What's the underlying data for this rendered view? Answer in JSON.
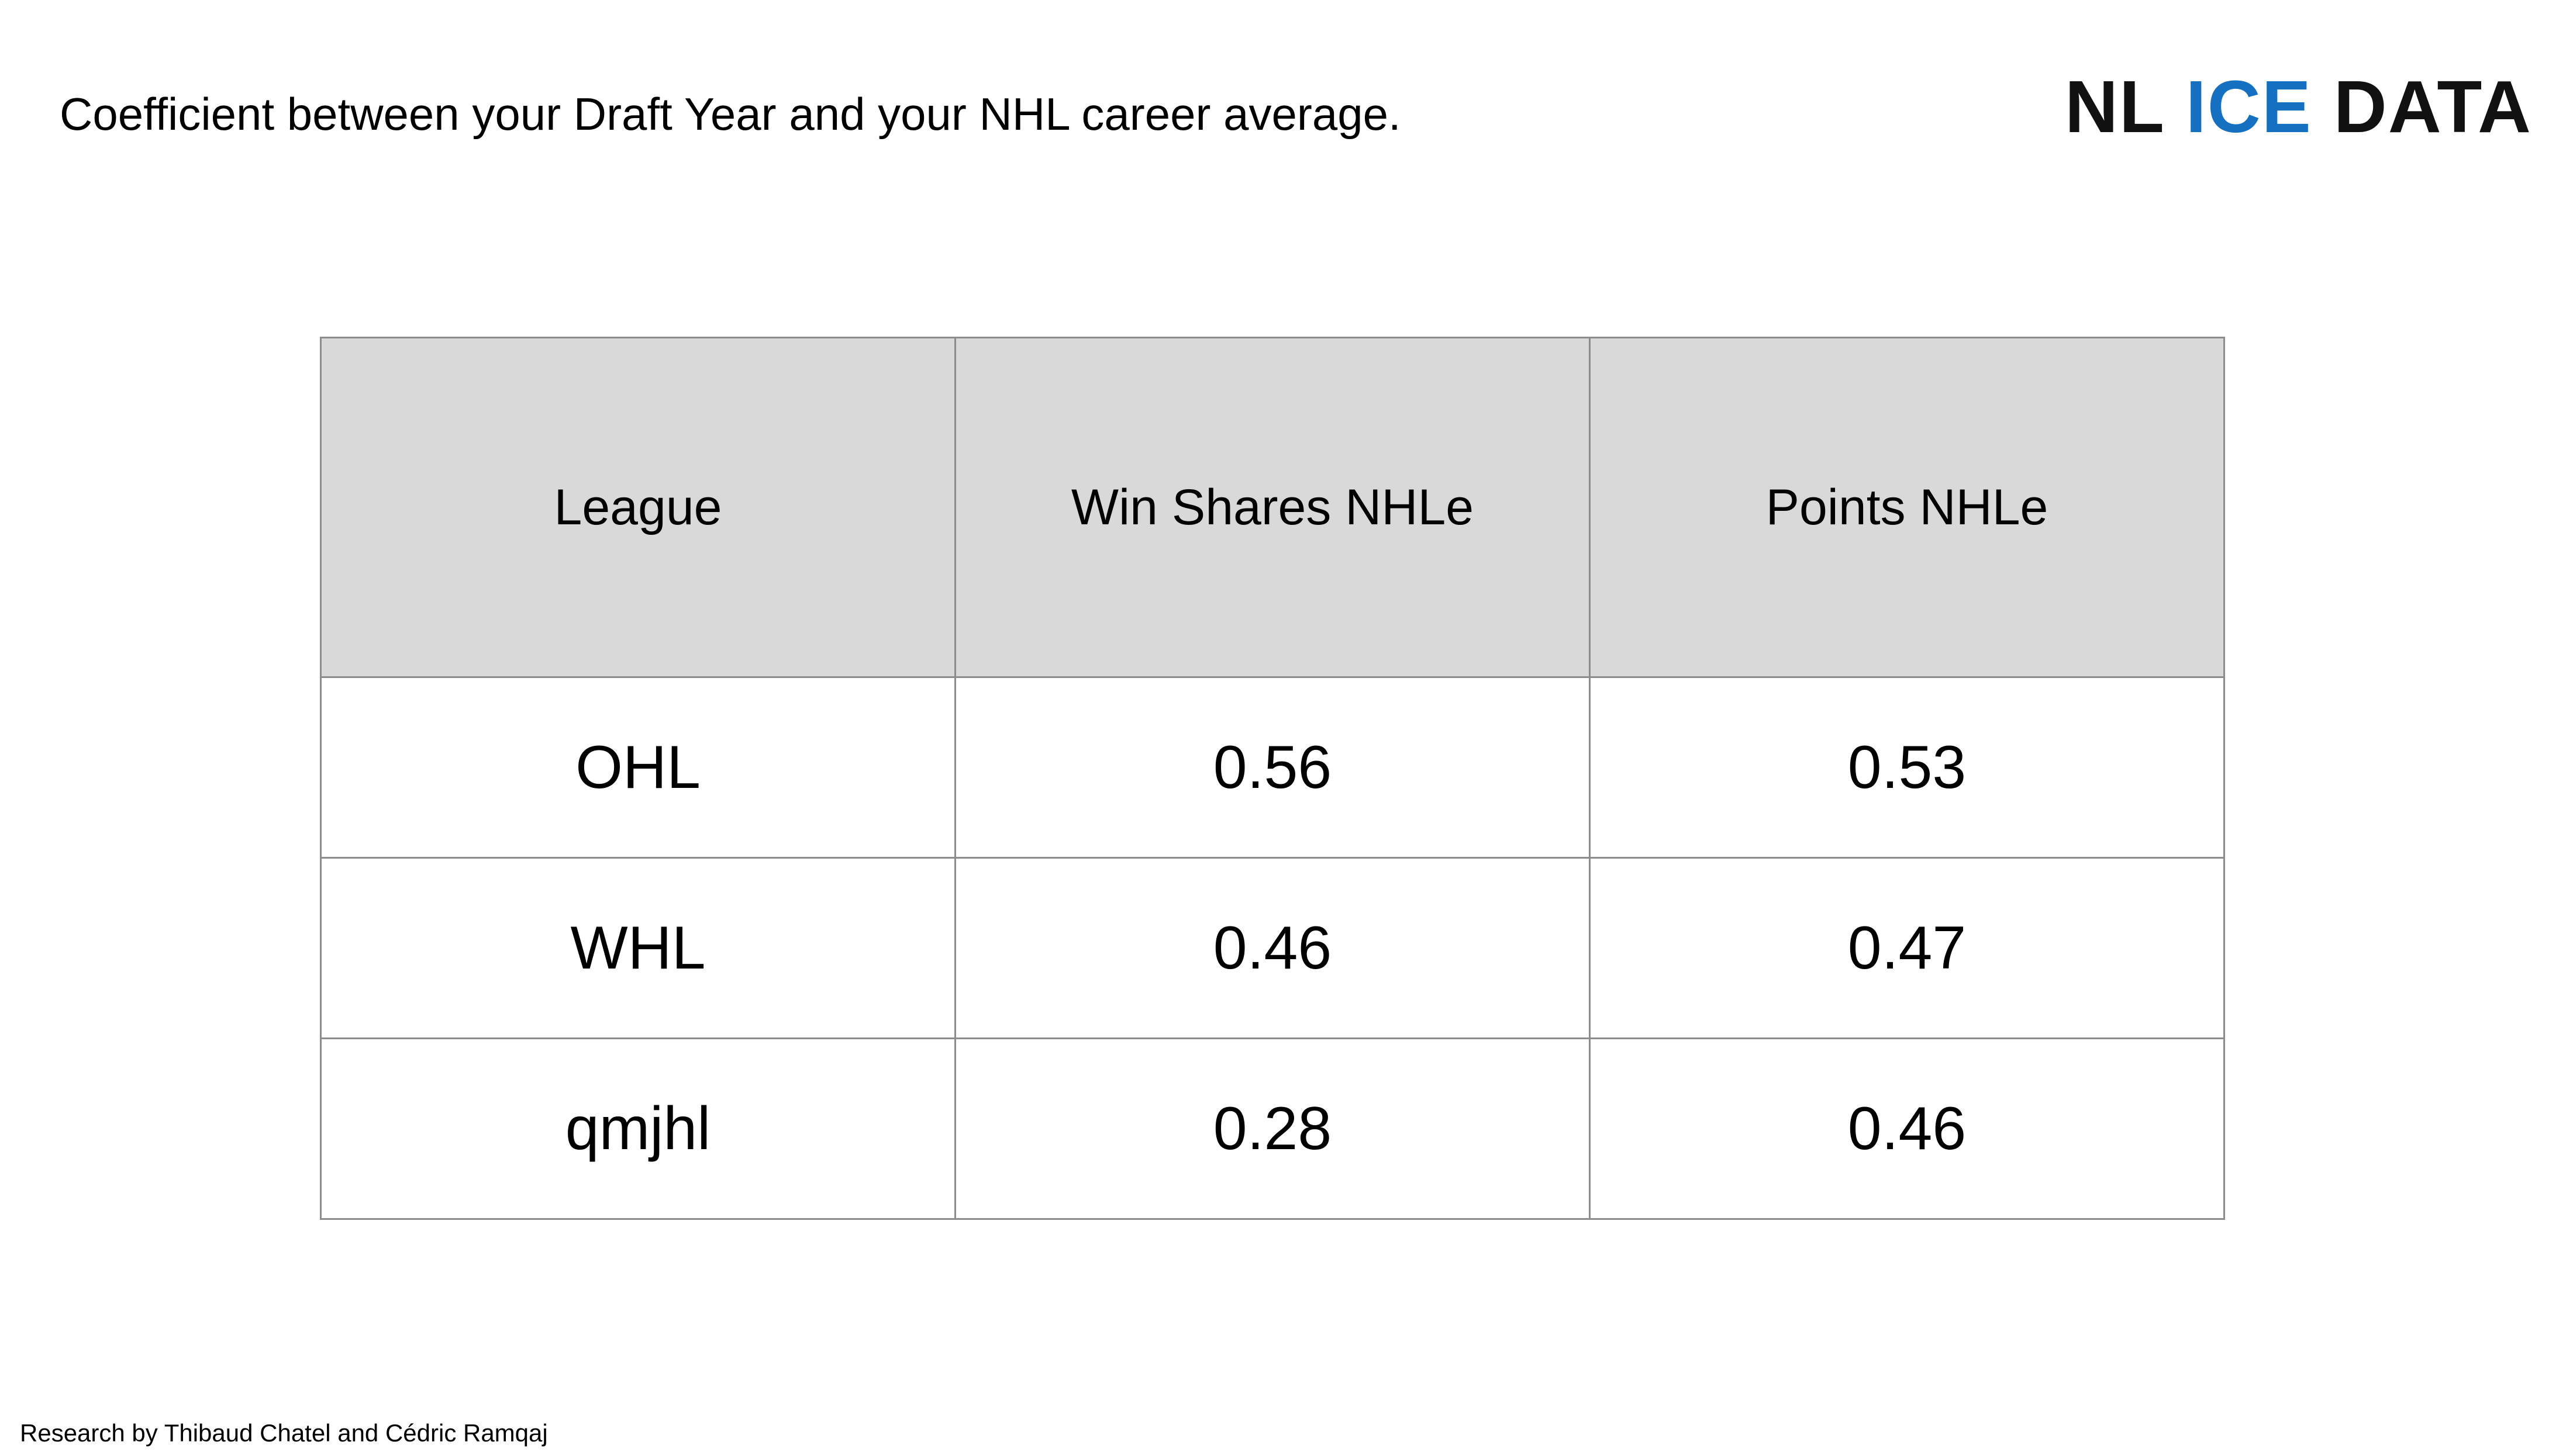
{
  "header": {
    "title": "Coefficient between your Draft Year and your NHL career average."
  },
  "logo": {
    "word1": "NL",
    "word2": "ICE",
    "word3": "DATA",
    "accent_color": "#1670c2"
  },
  "table": {
    "columns": [
      "League",
      "Win Shares NHLe",
      "Points NHLe"
    ],
    "rows": [
      {
        "league": "OHL",
        "win_shares": "0.56",
        "points": "0.53"
      },
      {
        "league": "WHL",
        "win_shares": "0.46",
        "points": "0.47"
      },
      {
        "league": "qmjhl",
        "win_shares": "0.28",
        "points": "0.46"
      }
    ]
  },
  "footer": {
    "credit": "Research by Thibaud Chatel and Cédric Ramqaj"
  }
}
